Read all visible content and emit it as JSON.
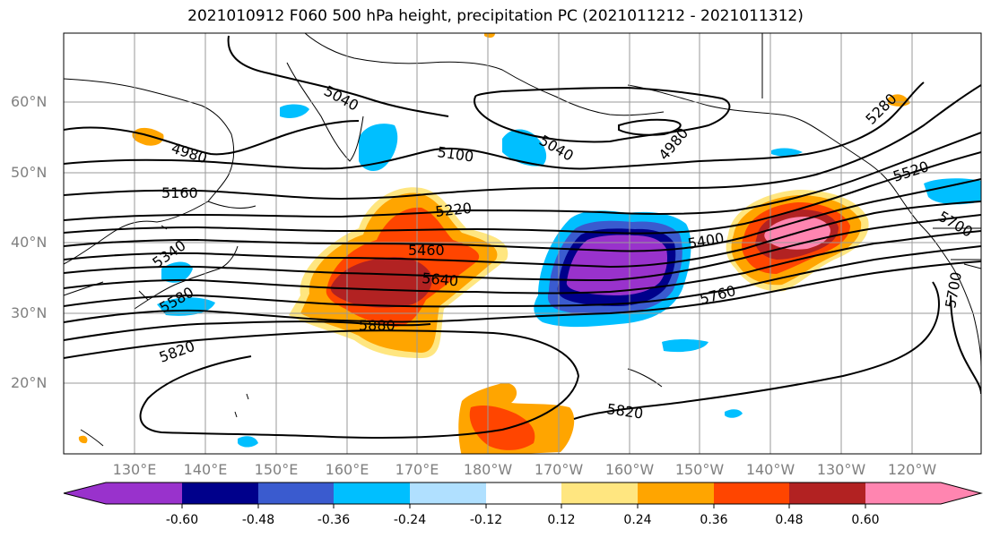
{
  "title": "2021010912 F060 500 hPa height, precipitation PC (2021011212 - 2021011312)",
  "lat_labels": [
    "60°N",
    "50°N",
    "40°N",
    "30°N",
    "20°N"
  ],
  "lon_labels": [
    "130°E",
    "140°E",
    "150°E",
    "160°E",
    "170°E",
    "180°W",
    "170°W",
    "160°W",
    "150°W",
    "140°W",
    "130°W",
    "120°W"
  ],
  "contour_labels": [
    "5040",
    "4980",
    "5100",
    "5040",
    "4980",
    "5280",
    "5160",
    "5220",
    "5520",
    "5340",
    "5460",
    "5400",
    "5700",
    "5640",
    "5580",
    "5760",
    "5880",
    "5700",
    "5820",
    "5820"
  ],
  "colorbar": {
    "tick_labels": [
      "-0.60",
      "-0.48",
      "-0.36",
      "-0.24",
      "-0.12",
      "0.12",
      "0.24",
      "0.36",
      "0.48",
      "0.60"
    ],
    "colors": [
      "#9932CC",
      "#00008B",
      "#3A5BCF",
      "#00BFFF",
      "#B0E0FF",
      "#FFFFFF",
      "#FFE680",
      "#FFA500",
      "#FF4500",
      "#B22222",
      "#FF85B0"
    ]
  }
}
